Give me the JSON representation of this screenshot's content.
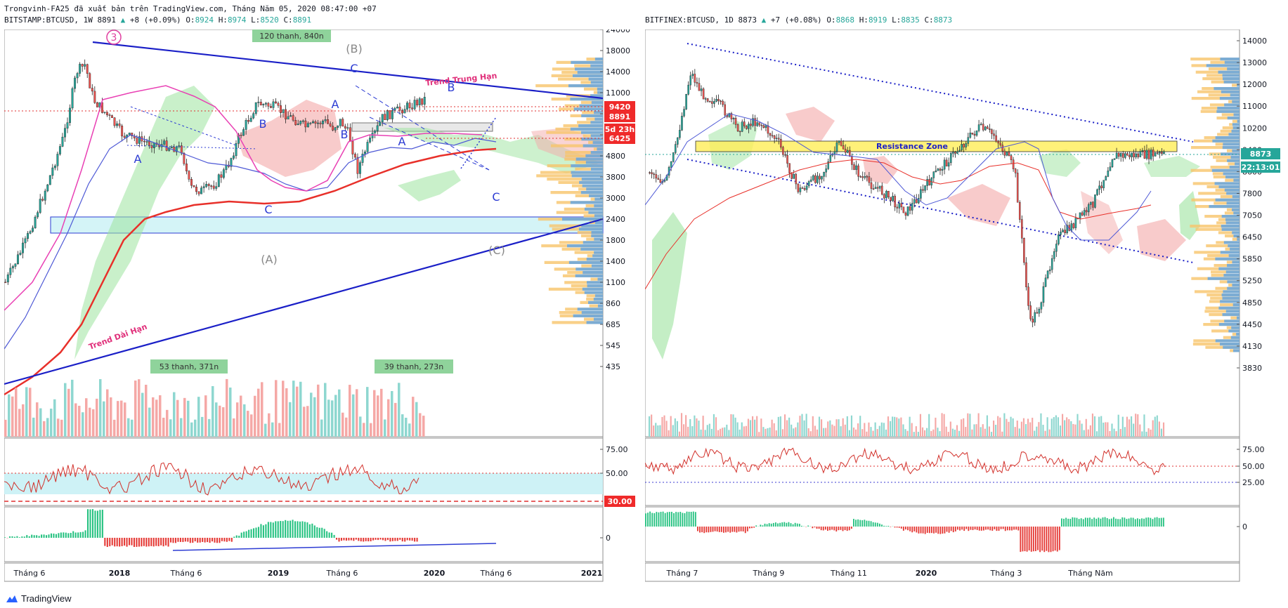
{
  "header": {
    "published": "Trongvinh-FA25 đã xuất bản trên TradingView.com, Tháng Năm 05, 2020 08:47:00 +07"
  },
  "left_chart": {
    "symbol_line": {
      "symbol": "BITSTAMP:BTCUSD, 1W 8891",
      "change": "+8 (+0.09%)",
      "o_label": "O:",
      "o": "8924",
      "h_label": "H:",
      "h": "8974",
      "l_label": "L:",
      "l": "8520",
      "c_label": "C:",
      "c": "8891"
    },
    "price_ticks": [
      "24000",
      "18000",
      "14000",
      "11000",
      "8000",
      "6400",
      "4800",
      "3800",
      "3000",
      "2400",
      "1800",
      "1400",
      "1100",
      "860",
      "685",
      "545",
      "435"
    ],
    "price_tags": [
      {
        "text": "9420",
        "color": "#ef2a2a"
      },
      {
        "text": "8891",
        "color": "#ef2a2a"
      },
      {
        "text": "5d 23h",
        "color": "#ef2a2a"
      },
      {
        "text": "6425",
        "color": "#ef2a2a"
      }
    ],
    "rsi_ticks": [
      "75.00",
      "50.00"
    ],
    "rsi_tag": "30.00",
    "macd_ticks": [
      "0"
    ],
    "time_ticks": [
      "Tháng 6",
      "2018",
      "Tháng 6",
      "2019",
      "Tháng 6",
      "2020",
      "Tháng 6",
      "2021"
    ],
    "annotations": {
      "wave3": "3",
      "waveB_big": "(B)",
      "waveA_big": "(A)",
      "waveC_big": "(C)",
      "A1": "A",
      "B1": "B",
      "C1": "C",
      "A2": "A",
      "B2": "B",
      "C2": "C",
      "B3": "B",
      "A3": "A",
      "C3": "C",
      "trend_mid": "Trend Trung Hạn",
      "trend_long": "Trend Dài Hạn",
      "box1": "120 thanh, 840n",
      "box2": "53 thanh, 371n",
      "box3": "39 thanh, 273n"
    }
  },
  "right_chart": {
    "symbol_line": {
      "symbol": "BITFINEX:BTCUSD, 1D 8873",
      "change": "+7 (+0.08%)",
      "o_label": "O:",
      "o": "8868",
      "h_label": "H:",
      "h": "8919",
      "l_label": "L:",
      "l": "8835",
      "c_label": "C:",
      "c": "8873"
    },
    "price_ticks": [
      "14000",
      "13000",
      "12000",
      "11000",
      "10200",
      "9400",
      "8600",
      "7800",
      "7050",
      "6450",
      "5850",
      "5250",
      "4850",
      "4450",
      "4130",
      "3830"
    ],
    "price_tags": [
      {
        "text": "8873",
        "color": "#26a69a"
      },
      {
        "text": "22:13:01",
        "color": "#26a69a"
      }
    ],
    "rsi_ticks": [
      "75.00",
      "50.00",
      "25.00"
    ],
    "macd_ticks": [
      "0"
    ],
    "time_ticks": [
      "Tháng 7",
      "Tháng 9",
      "Tháng 11",
      "2020",
      "Tháng 3",
      "Tháng Năm"
    ],
    "annotations": {
      "resistance": "Resistance Zone"
    }
  },
  "brand": "TradingView",
  "chart_data": [
    {
      "type": "candlestick",
      "title": "",
      "symbol": "BITSTAMP:BTCUSD 1W",
      "y_scale": "log",
      "ylim": [
        435,
        24000
      ],
      "x": [
        "2017-04",
        "2017-06",
        "2017-09",
        "2017-12",
        "2018-03",
        "2018-06",
        "2018-09",
        "2018-12",
        "2019-03",
        "2019-06",
        "2019-09",
        "2019-12",
        "2020-03",
        "2020-05"
      ],
      "close": [
        1200,
        2500,
        4300,
        14000,
        7000,
        6400,
        6500,
        3700,
        4000,
        11000,
        8200,
        7200,
        6000,
        8891
      ],
      "rsi_levels": [
        75,
        50,
        30
      ]
    },
    {
      "type": "candlestick",
      "title": "",
      "symbol": "BITFINEX:BTCUSD 1D",
      "y_scale": "log",
      "ylim": [
        3830,
        14000
      ],
      "x": [
        "2019-06",
        "2019-07",
        "2019-08",
        "2019-09",
        "2019-10",
        "2019-11",
        "2019-12",
        "2020-01",
        "2020-02",
        "2020-03",
        "2020-04",
        "2020-05"
      ],
      "close": [
        10800,
        9800,
        10300,
        8300,
        9200,
        7500,
        7200,
        9300,
        8700,
        5200,
        6800,
        8873
      ],
      "resistance_zone": [
        8900,
        9600
      ],
      "rsi_levels": [
        75,
        50,
        25
      ]
    }
  ]
}
